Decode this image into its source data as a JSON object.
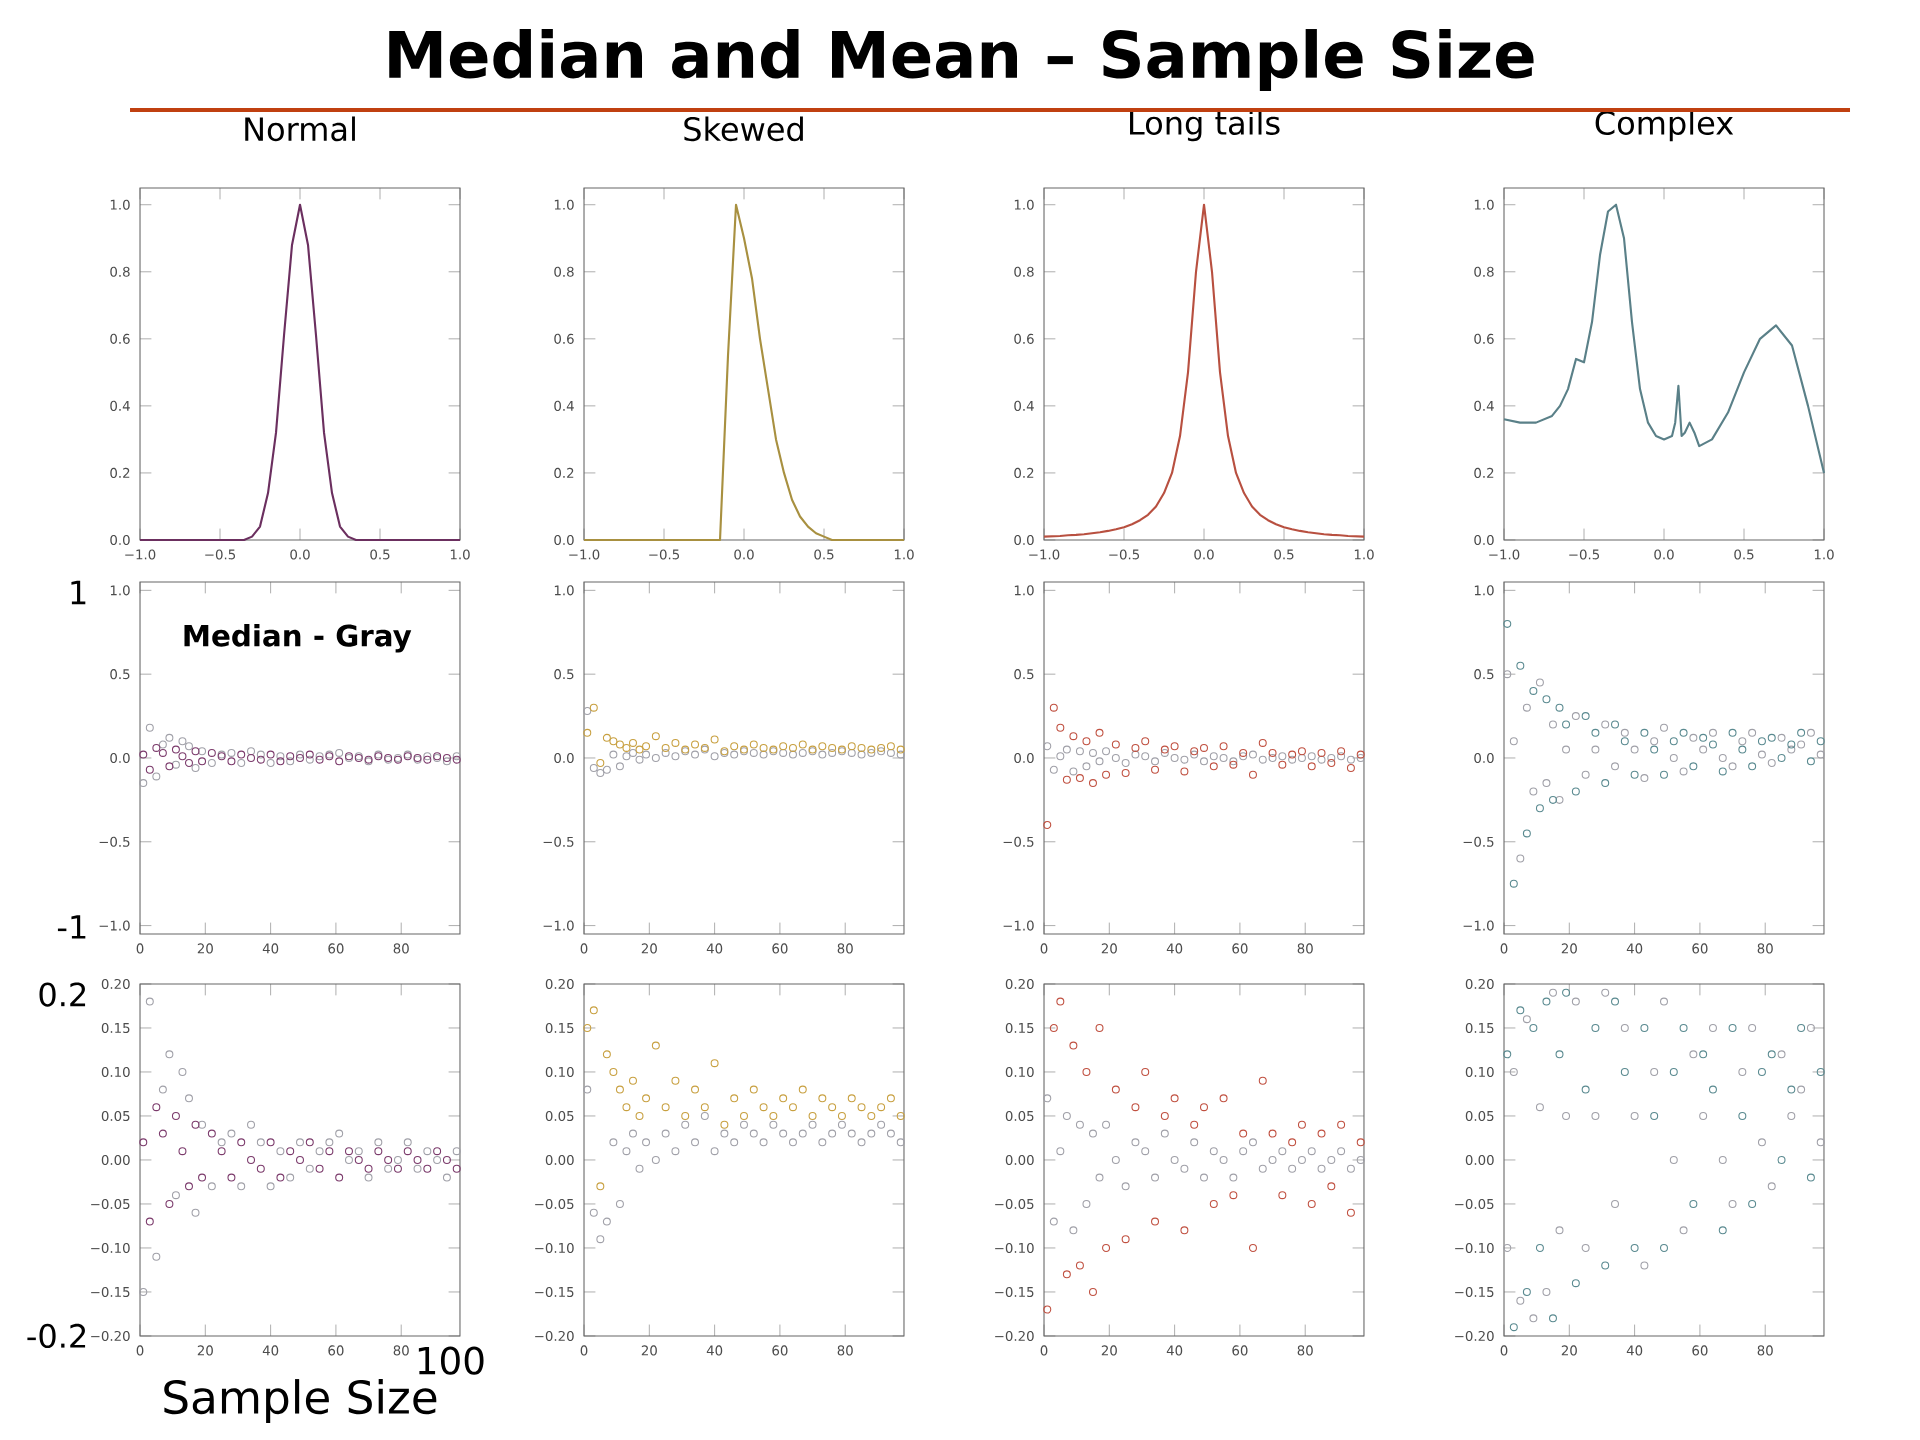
{
  "chart_data": [
    {
      "type": "line",
      "title": "Normal",
      "annotations": [
        "Median and Mean – Sample Size"
      ],
      "xlim": [
        -1,
        1
      ],
      "ylim": [
        0,
        1.05
      ],
      "xticks": [
        {
          "value": -1,
          "label": "−1.0"
        },
        {
          "value": -0.5,
          "label": "−0.5"
        },
        {
          "value": 0,
          "label": "0.0"
        },
        {
          "value": 0.5,
          "label": "0.5"
        },
        {
          "value": 1,
          "label": "1.0"
        }
      ],
      "yticks": [
        {
          "value": 0,
          "label": "0.0"
        },
        {
          "value": 0.2,
          "label": "0.2"
        },
        {
          "value": 0.4,
          "label": "0.4"
        },
        {
          "value": 0.6,
          "label": "0.6"
        },
        {
          "value": 0.8,
          "label": "0.8"
        },
        {
          "value": 1,
          "label": "1.0"
        }
      ],
      "x": [
        -1,
        -0.95,
        -0.9,
        -0.85,
        -0.8,
        -0.75,
        -0.7,
        -0.65,
        -0.6,
        -0.55,
        -0.5,
        -0.45,
        -0.4,
        -0.35,
        -0.3,
        -0.25,
        -0.2,
        -0.15,
        -0.1,
        -0.05,
        0,
        0.05,
        0.1,
        0.15,
        0.2,
        0.25,
        0.3,
        0.35,
        0.4,
        0.45,
        0.5,
        0.55,
        0.6,
        0.65,
        0.7,
        0.75,
        0.8,
        0.85,
        0.9,
        0.95,
        1
      ],
      "series": [
        {
          "color": "#6b2f5f",
          "values": [
            0,
            0,
            0,
            0,
            0,
            0,
            0,
            0,
            0,
            0,
            0,
            0,
            0,
            0,
            0.01,
            0.04,
            0.14,
            0.32,
            0.61,
            0.88,
            1,
            0.88,
            0.61,
            0.32,
            0.14,
            0.04,
            0.01,
            0,
            0,
            0,
            0,
            0,
            0,
            0,
            0,
            0,
            0,
            0,
            0,
            0,
            0
          ]
        }
      ]
    },
    {
      "type": "line",
      "title": "Skewed",
      "xlim": [
        -1,
        1
      ],
      "ylim": [
        0,
        1.05
      ],
      "xticks": [
        {
          "value": -1,
          "label": "−1.0"
        },
        {
          "value": -0.5,
          "label": "−0.5"
        },
        {
          "value": 0,
          "label": "0.0"
        },
        {
          "value": 0.5,
          "label": "0.5"
        },
        {
          "value": 1,
          "label": "1.0"
        }
      ],
      "yticks": [
        {
          "value": 0,
          "label": "0.0"
        },
        {
          "value": 0.2,
          "label": "0.2"
        },
        {
          "value": 0.4,
          "label": "0.4"
        },
        {
          "value": 0.6,
          "label": "0.6"
        },
        {
          "value": 0.8,
          "label": "0.8"
        },
        {
          "value": 1,
          "label": "1.0"
        }
      ],
      "x": [
        -1,
        -0.95,
        -0.9,
        -0.85,
        -0.8,
        -0.75,
        -0.7,
        -0.65,
        -0.6,
        -0.55,
        -0.5,
        -0.45,
        -0.4,
        -0.35,
        -0.3,
        -0.25,
        -0.2,
        -0.15,
        -0.1,
        -0.05,
        0,
        0.05,
        0.1,
        0.15,
        0.2,
        0.25,
        0.3,
        0.35,
        0.4,
        0.45,
        0.5,
        0.55,
        0.6,
        0.65,
        0.7,
        0.75,
        0.8,
        0.85,
        0.9,
        0.95,
        1
      ],
      "series": [
        {
          "color": "#a89040",
          "values": [
            0,
            0,
            0,
            0,
            0,
            0,
            0,
            0,
            0,
            0,
            0,
            0,
            0,
            0,
            0,
            0,
            0,
            0,
            0.55,
            1,
            0.9,
            0.78,
            0.6,
            0.45,
            0.3,
            0.2,
            0.12,
            0.07,
            0.04,
            0.02,
            0.01,
            0,
            0,
            0,
            0,
            0,
            0,
            0,
            0,
            0,
            0
          ]
        }
      ]
    },
    {
      "type": "line",
      "title": "Long tails",
      "xlim": [
        -1,
        1
      ],
      "ylim": [
        0,
        1.05
      ],
      "xticks": [
        {
          "value": -1,
          "label": "−1.0"
        },
        {
          "value": -0.5,
          "label": "−0.5"
        },
        {
          "value": 0,
          "label": "0.0"
        },
        {
          "value": 0.5,
          "label": "0.5"
        },
        {
          "value": 1,
          "label": "1.0"
        }
      ],
      "yticks": [
        {
          "value": 0,
          "label": "0.0"
        },
        {
          "value": 0.2,
          "label": "0.2"
        },
        {
          "value": 0.4,
          "label": "0.4"
        },
        {
          "value": 0.6,
          "label": "0.6"
        },
        {
          "value": 0.8,
          "label": "0.8"
        },
        {
          "value": 1,
          "label": "1.0"
        }
      ],
      "x": [
        -1,
        -0.95,
        -0.9,
        -0.85,
        -0.8,
        -0.75,
        -0.7,
        -0.65,
        -0.6,
        -0.55,
        -0.5,
        -0.45,
        -0.4,
        -0.35,
        -0.3,
        -0.25,
        -0.2,
        -0.15,
        -0.1,
        -0.05,
        0,
        0.05,
        0.1,
        0.15,
        0.2,
        0.25,
        0.3,
        0.35,
        0.4,
        0.45,
        0.5,
        0.55,
        0.6,
        0.65,
        0.7,
        0.75,
        0.8,
        0.85,
        0.9,
        0.95,
        1
      ],
      "series": [
        {
          "color": "#b85040",
          "values": [
            0.01,
            0.011,
            0.012,
            0.014,
            0.015,
            0.017,
            0.02,
            0.023,
            0.027,
            0.032,
            0.038,
            0.047,
            0.059,
            0.075,
            0.1,
            0.14,
            0.2,
            0.31,
            0.5,
            0.8,
            1,
            0.8,
            0.5,
            0.31,
            0.2,
            0.14,
            0.1,
            0.075,
            0.059,
            0.047,
            0.038,
            0.032,
            0.027,
            0.023,
            0.02,
            0.017,
            0.015,
            0.014,
            0.012,
            0.011,
            0.01
          ]
        }
      ]
    },
    {
      "type": "line",
      "title": "Complex",
      "xlim": [
        -1,
        1
      ],
      "ylim": [
        0,
        1.05
      ],
      "xticks": [
        {
          "value": -1,
          "label": "−1.0"
        },
        {
          "value": -0.5,
          "label": "−0.5"
        },
        {
          "value": 0,
          "label": "0.0"
        },
        {
          "value": 0.5,
          "label": "0.5"
        },
        {
          "value": 1,
          "label": "1.0"
        }
      ],
      "yticks": [
        {
          "value": 0,
          "label": "0.0"
        },
        {
          "value": 0.2,
          "label": "0.2"
        },
        {
          "value": 0.4,
          "label": "0.4"
        },
        {
          "value": 0.6,
          "label": "0.6"
        },
        {
          "value": 0.8,
          "label": "0.8"
        },
        {
          "value": 1,
          "label": "1.0"
        }
      ],
      "x": [
        -1,
        -0.9,
        -0.8,
        -0.7,
        -0.65,
        -0.6,
        -0.55,
        -0.5,
        -0.45,
        -0.4,
        -0.35,
        -0.3,
        -0.25,
        -0.2,
        -0.15,
        -0.1,
        -0.05,
        0,
        0.05,
        0.07,
        0.09,
        0.11,
        0.13,
        0.16,
        0.19,
        0.22,
        0.3,
        0.4,
        0.5,
        0.6,
        0.7,
        0.8,
        0.9,
        1
      ],
      "series": [
        {
          "color": "#5a8088",
          "values": [
            0.36,
            0.35,
            0.35,
            0.37,
            0.4,
            0.45,
            0.54,
            0.53,
            0.65,
            0.85,
            0.98,
            1.0,
            0.9,
            0.65,
            0.45,
            0.35,
            0.31,
            0.3,
            0.31,
            0.35,
            0.46,
            0.31,
            0.32,
            0.35,
            0.32,
            0.28,
            0.3,
            0.38,
            0.5,
            0.6,
            0.64,
            0.58,
            0.4,
            0.2
          ]
        }
      ]
    },
    {
      "type": "scatter",
      "marker": "circle",
      "annotations": [
        "1",
        "-1",
        "Median - Gray"
      ],
      "xlim": [
        0,
        98
      ],
      "ylim": [
        -1.05,
        1.05
      ],
      "xticks": [
        0,
        20,
        40,
        60,
        80
      ],
      "yticks": [
        {
          "value": -1,
          "label": "−1.0"
        },
        {
          "value": -0.5,
          "label": "−0.5"
        },
        {
          "value": 0,
          "label": "0.0"
        },
        {
          "value": 0.5,
          "label": "0.5"
        },
        {
          "value": 1,
          "label": "1.0"
        }
      ],
      "x": [
        1,
        3,
        5,
        7,
        9,
        11,
        13,
        15,
        17,
        19,
        22,
        25,
        28,
        31,
        34,
        37,
        40,
        43,
        46,
        49,
        52,
        55,
        58,
        61,
        64,
        67,
        70,
        73,
        76,
        79,
        82,
        85,
        88,
        91,
        94,
        97
      ],
      "series": [
        {
          "color": "#a0a0a8",
          "values": [
            -0.15,
            0.18,
            -0.11,
            0.08,
            0.12,
            -0.04,
            0.1,
            0.07,
            -0.06,
            0.04,
            -0.03,
            0.02,
            0.03,
            -0.03,
            0.04,
            0.02,
            -0.03,
            0.01,
            -0.02,
            0.02,
            -0.01,
            0.01,
            0.02,
            0.03,
            0,
            0.01,
            -0.02,
            0.02,
            -0.01,
            0,
            0.02,
            -0.01,
            0.01,
            0,
            -0.02,
            0.01
          ]
        },
        {
          "color": "#7b3a6b",
          "values": [
            0.02,
            -0.07,
            0.06,
            0.03,
            -0.05,
            0.05,
            0.01,
            -0.03,
            0.04,
            -0.02,
            0.03,
            0.01,
            -0.02,
            0.02,
            0,
            -0.01,
            0.02,
            -0.02,
            0.01,
            0,
            0.02,
            -0.01,
            0.01,
            -0.02,
            0.01,
            0,
            -0.01,
            0.01,
            0,
            -0.01,
            0.01,
            0,
            -0.01,
            0.01,
            0,
            -0.01
          ]
        }
      ]
    },
    {
      "type": "scatter",
      "marker": "circle",
      "xlim": [
        0,
        98
      ],
      "ylim": [
        -1.05,
        1.05
      ],
      "xticks": [
        0,
        20,
        40,
        60,
        80
      ],
      "yticks": [
        {
          "value": -1,
          "label": "−1.0"
        },
        {
          "value": -0.5,
          "label": "−0.5"
        },
        {
          "value": 0,
          "label": "0.0"
        },
        {
          "value": 0.5,
          "label": "0.5"
        },
        {
          "value": 1,
          "label": "1.0"
        }
      ],
      "x": [
        1,
        3,
        5,
        7,
        9,
        11,
        13,
        15,
        17,
        19,
        22,
        25,
        28,
        31,
        34,
        37,
        40,
        43,
        46,
        49,
        52,
        55,
        58,
        61,
        64,
        67,
        70,
        73,
        76,
        79,
        82,
        85,
        88,
        91,
        94,
        97
      ],
      "series": [
        {
          "color": "#a0a0a8",
          "values": [
            0.28,
            -0.06,
            -0.09,
            -0.07,
            0.02,
            -0.05,
            0.01,
            0.03,
            -0.01,
            0.02,
            0,
            0.03,
            0.01,
            0.04,
            0.02,
            0.05,
            0.01,
            0.03,
            0.02,
            0.04,
            0.03,
            0.02,
            0.04,
            0.03,
            0.02,
            0.03,
            0.04,
            0.02,
            0.03,
            0.04,
            0.03,
            0.02,
            0.03,
            0.04,
            0.03,
            0.02
          ]
        },
        {
          "color": "#c8a040",
          "values": [
            0.15,
            0.3,
            -0.03,
            0.12,
            0.1,
            0.08,
            0.06,
            0.09,
            0.05,
            0.07,
            0.13,
            0.06,
            0.09,
            0.05,
            0.08,
            0.06,
            0.11,
            0.04,
            0.07,
            0.05,
            0.08,
            0.06,
            0.05,
            0.07,
            0.06,
            0.08,
            0.05,
            0.07,
            0.06,
            0.05,
            0.07,
            0.06,
            0.05,
            0.06,
            0.07,
            0.05
          ]
        }
      ]
    },
    {
      "type": "scatter",
      "marker": "circle",
      "xlim": [
        0,
        98
      ],
      "ylim": [
        -1.05,
        1.05
      ],
      "xticks": [
        0,
        20,
        40,
        60,
        80
      ],
      "yticks": [
        {
          "value": -1,
          "label": "−1.0"
        },
        {
          "value": -0.5,
          "label": "−0.5"
        },
        {
          "value": 0,
          "label": "0.0"
        },
        {
          "value": 0.5,
          "label": "0.5"
        },
        {
          "value": 1,
          "label": "1.0"
        }
      ],
      "x": [
        1,
        3,
        5,
        7,
        9,
        11,
        13,
        15,
        17,
        19,
        22,
        25,
        28,
        31,
        34,
        37,
        40,
        43,
        46,
        49,
        52,
        55,
        58,
        61,
        64,
        67,
        70,
        73,
        76,
        79,
        82,
        85,
        88,
        91,
        94,
        97
      ],
      "series": [
        {
          "color": "#a0a0a8",
          "values": [
            0.07,
            -0.07,
            0.01,
            0.05,
            -0.08,
            0.04,
            -0.05,
            0.03,
            -0.02,
            0.04,
            0,
            -0.03,
            0.02,
            0.01,
            -0.02,
            0.03,
            0,
            -0.01,
            0.02,
            -0.02,
            0.01,
            0,
            -0.02,
            0.01,
            0.02,
            -0.01,
            0,
            0.01,
            -0.01,
            0,
            0.01,
            -0.01,
            0,
            0.01,
            -0.01,
            0
          ]
        },
        {
          "color": "#c05040",
          "values": [
            -0.4,
            0.3,
            0.18,
            -0.13,
            0.13,
            -0.12,
            0.1,
            -0.15,
            0.15,
            -0.1,
            0.08,
            -0.09,
            0.06,
            0.1,
            -0.07,
            0.05,
            0.07,
            -0.08,
            0.04,
            0.06,
            -0.05,
            0.07,
            -0.04,
            0.03,
            -0.1,
            0.09,
            0.03,
            -0.04,
            0.02,
            0.04,
            -0.05,
            0.03,
            -0.03,
            0.04,
            -0.06,
            0.02
          ]
        }
      ]
    },
    {
      "type": "scatter",
      "marker": "circle",
      "xlim": [
        0,
        98
      ],
      "ylim": [
        -1.05,
        1.05
      ],
      "xticks": [
        0,
        20,
        40,
        60,
        80
      ],
      "yticks": [
        {
          "value": -1,
          "label": "−1.0"
        },
        {
          "value": -0.5,
          "label": "−0.5"
        },
        {
          "value": 0,
          "label": "0.0"
        },
        {
          "value": 0.5,
          "label": "0.5"
        },
        {
          "value": 1,
          "label": "1.0"
        }
      ],
      "x": [
        1,
        3,
        5,
        7,
        9,
        11,
        13,
        15,
        17,
        19,
        22,
        25,
        28,
        31,
        34,
        37,
        40,
        43,
        46,
        49,
        52,
        55,
        58,
        61,
        64,
        67,
        70,
        73,
        76,
        79,
        82,
        85,
        88,
        91,
        94,
        97
      ],
      "series": [
        {
          "color": "#a0a0a8",
          "values": [
            0.5,
            0.1,
            -0.6,
            0.3,
            -0.2,
            0.45,
            -0.15,
            0.2,
            -0.25,
            0.05,
            0.25,
            -0.1,
            0.05,
            0.2,
            -0.05,
            0.15,
            0.05,
            -0.12,
            0.1,
            0.18,
            0,
            -0.08,
            0.12,
            0.05,
            0.15,
            0,
            -0.05,
            0.1,
            0.15,
            0.02,
            -0.03,
            0.12,
            0.05,
            0.08,
            0.15,
            0.02
          ]
        },
        {
          "color": "#5a8a90",
          "values": [
            0.8,
            -0.75,
            0.55,
            -0.45,
            0.4,
            -0.3,
            0.35,
            -0.25,
            0.3,
            0.2,
            -0.2,
            0.25,
            0.15,
            -0.15,
            0.2,
            0.1,
            -0.1,
            0.15,
            0.05,
            -0.1,
            0.1,
            0.15,
            -0.05,
            0.12,
            0.08,
            -0.08,
            0.15,
            0.05,
            -0.05,
            0.1,
            0.12,
            0,
            0.08,
            0.15,
            -0.02,
            0.1
          ]
        }
      ]
    },
    {
      "type": "scatter",
      "marker": "circle",
      "annotations": [
        "0.2",
        "-0.2",
        "100"
      ],
      "xlabel": "Sample Size",
      "xlim": [
        0,
        98
      ],
      "ylim": [
        -0.2,
        0.2
      ],
      "xticks": [
        0,
        20,
        40,
        60,
        80
      ],
      "yticks": [
        {
          "value": -0.2,
          "label": "−0.20"
        },
        {
          "value": -0.15,
          "label": "−0.15"
        },
        {
          "value": -0.1,
          "label": "−0.10"
        },
        {
          "value": -0.05,
          "label": "−0.05"
        },
        {
          "value": 0,
          "label": "0.00"
        },
        {
          "value": 0.05,
          "label": "0.05"
        },
        {
          "value": 0.1,
          "label": "0.10"
        },
        {
          "value": 0.15,
          "label": "0.15"
        },
        {
          "value": 0.2,
          "label": "0.20"
        }
      ],
      "x": [
        1,
        3,
        5,
        7,
        9,
        11,
        13,
        15,
        17,
        19,
        22,
        25,
        28,
        31,
        34,
        37,
        40,
        43,
        46,
        49,
        52,
        55,
        58,
        61,
        64,
        67,
        70,
        73,
        76,
        79,
        82,
        85,
        88,
        91,
        94,
        97
      ],
      "series": [
        {
          "color": "#a0a0a8",
          "values": [
            -0.15,
            0.18,
            -0.11,
            0.08,
            0.12,
            -0.04,
            0.1,
            0.07,
            -0.06,
            0.04,
            -0.03,
            0.02,
            0.03,
            -0.03,
            0.04,
            0.02,
            -0.03,
            0.01,
            -0.02,
            0.02,
            -0.01,
            0.01,
            0.02,
            0.03,
            0,
            0.01,
            -0.02,
            0.02,
            -0.01,
            0,
            0.02,
            -0.01,
            0.01,
            0,
            -0.02,
            0.01
          ]
        },
        {
          "color": "#7b3a6b",
          "values": [
            0.02,
            -0.07,
            0.06,
            0.03,
            -0.05,
            0.05,
            0.01,
            -0.03,
            0.04,
            -0.02,
            0.03,
            0.01,
            -0.02,
            0.02,
            0,
            -0.01,
            0.02,
            -0.02,
            0.01,
            0,
            0.02,
            -0.01,
            0.01,
            -0.02,
            0.01,
            0,
            -0.01,
            0.01,
            0,
            -0.01,
            0.01,
            0,
            -0.01,
            0.01,
            0,
            -0.01
          ]
        }
      ]
    },
    {
      "type": "scatter",
      "marker": "circle",
      "xlim": [
        0,
        98
      ],
      "ylim": [
        -0.2,
        0.2
      ],
      "xticks": [
        0,
        20,
        40,
        60,
        80
      ],
      "yticks": [
        {
          "value": -0.2,
          "label": "−0.20"
        },
        {
          "value": -0.15,
          "label": "−0.15"
        },
        {
          "value": -0.1,
          "label": "−0.10"
        },
        {
          "value": -0.05,
          "label": "−0.05"
        },
        {
          "value": 0,
          "label": "0.00"
        },
        {
          "value": 0.05,
          "label": "0.05"
        },
        {
          "value": 0.1,
          "label": "0.10"
        },
        {
          "value": 0.15,
          "label": "0.15"
        },
        {
          "value": 0.2,
          "label": "0.20"
        }
      ],
      "x": [
        1,
        3,
        5,
        7,
        9,
        11,
        13,
        15,
        17,
        19,
        22,
        25,
        28,
        31,
        34,
        37,
        40,
        43,
        46,
        49,
        52,
        55,
        58,
        61,
        64,
        67,
        70,
        73,
        76,
        79,
        82,
        85,
        88,
        91,
        94,
        97
      ],
      "series": [
        {
          "color": "#a0a0a8",
          "values": [
            0.08,
            -0.06,
            -0.09,
            -0.07,
            0.02,
            -0.05,
            0.01,
            0.03,
            -0.01,
            0.02,
            0,
            0.03,
            0.01,
            0.04,
            0.02,
            0.05,
            0.01,
            0.03,
            0.02,
            0.04,
            0.03,
            0.02,
            0.04,
            0.03,
            0.02,
            0.03,
            0.04,
            0.02,
            0.03,
            0.04,
            0.03,
            0.02,
            0.03,
            0.04,
            0.03,
            0.02
          ]
        },
        {
          "color": "#c8a040",
          "values": [
            0.15,
            0.17,
            -0.03,
            0.12,
            0.1,
            0.08,
            0.06,
            0.09,
            0.05,
            0.07,
            0.13,
            0.06,
            0.09,
            0.05,
            0.08,
            0.06,
            0.11,
            0.04,
            0.07,
            0.05,
            0.08,
            0.06,
            0.05,
            0.07,
            0.06,
            0.08,
            0.05,
            0.07,
            0.06,
            0.05,
            0.07,
            0.06,
            0.05,
            0.06,
            0.07,
            0.05
          ]
        }
      ]
    },
    {
      "type": "scatter",
      "marker": "circle",
      "xlim": [
        0,
        98
      ],
      "ylim": [
        -0.2,
        0.2
      ],
      "xticks": [
        0,
        20,
        40,
        60,
        80
      ],
      "yticks": [
        {
          "value": -0.2,
          "label": "−0.20"
        },
        {
          "value": -0.15,
          "label": "−0.15"
        },
        {
          "value": -0.1,
          "label": "−0.10"
        },
        {
          "value": -0.05,
          "label": "−0.05"
        },
        {
          "value": 0,
          "label": "0.00"
        },
        {
          "value": 0.05,
          "label": "0.05"
        },
        {
          "value": 0.1,
          "label": "0.10"
        },
        {
          "value": 0.15,
          "label": "0.15"
        },
        {
          "value": 0.2,
          "label": "0.20"
        }
      ],
      "x": [
        1,
        3,
        5,
        7,
        9,
        11,
        13,
        15,
        17,
        19,
        22,
        25,
        28,
        31,
        34,
        37,
        40,
        43,
        46,
        49,
        52,
        55,
        58,
        61,
        64,
        67,
        70,
        73,
        76,
        79,
        82,
        85,
        88,
        91,
        94,
        97
      ],
      "series": [
        {
          "color": "#a0a0a8",
          "values": [
            0.07,
            -0.07,
            0.01,
            0.05,
            -0.08,
            0.04,
            -0.05,
            0.03,
            -0.02,
            0.04,
            0,
            -0.03,
            0.02,
            0.01,
            -0.02,
            0.03,
            0,
            -0.01,
            0.02,
            -0.02,
            0.01,
            0,
            -0.02,
            0.01,
            0.02,
            -0.01,
            0,
            0.01,
            -0.01,
            0,
            0.01,
            -0.01,
            0,
            0.01,
            -0.01,
            0
          ]
        },
        {
          "color": "#c05040",
          "values": [
            -0.17,
            0.15,
            0.18,
            -0.13,
            0.13,
            -0.12,
            0.1,
            -0.15,
            0.15,
            -0.1,
            0.08,
            -0.09,
            0.06,
            0.1,
            -0.07,
            0.05,
            0.07,
            -0.08,
            0.04,
            0.06,
            -0.05,
            0.07,
            -0.04,
            0.03,
            -0.1,
            0.09,
            0.03,
            -0.04,
            0.02,
            0.04,
            -0.05,
            0.03,
            -0.03,
            0.04,
            -0.06,
            0.02
          ]
        }
      ]
    },
    {
      "type": "scatter",
      "marker": "circle",
      "xlim": [
        0,
        98
      ],
      "ylim": [
        -0.2,
        0.2
      ],
      "xticks": [
        0,
        20,
        40,
        60,
        80
      ],
      "yticks": [
        {
          "value": -0.2,
          "label": "−0.20"
        },
        {
          "value": -0.15,
          "label": "−0.15"
        },
        {
          "value": -0.1,
          "label": "−0.10"
        },
        {
          "value": -0.05,
          "label": "−0.05"
        },
        {
          "value": 0,
          "label": "0.00"
        },
        {
          "value": 0.05,
          "label": "0.05"
        },
        {
          "value": 0.1,
          "label": "0.10"
        },
        {
          "value": 0.15,
          "label": "0.15"
        },
        {
          "value": 0.2,
          "label": "0.20"
        }
      ],
      "x": [
        1,
        3,
        5,
        7,
        9,
        11,
        13,
        15,
        17,
        19,
        22,
        25,
        28,
        31,
        34,
        37,
        40,
        43,
        46,
        49,
        52,
        55,
        58,
        61,
        64,
        67,
        70,
        73,
        76,
        79,
        82,
        85,
        88,
        91,
        94,
        97
      ],
      "series": [
        {
          "color": "#a0a0a8",
          "values": [
            -0.1,
            0.1,
            -0.16,
            0.16,
            -0.18,
            0.06,
            -0.15,
            0.19,
            -0.08,
            0.05,
            0.18,
            -0.1,
            0.05,
            0.19,
            -0.05,
            0.15,
            0.05,
            -0.12,
            0.1,
            0.18,
            0,
            -0.08,
            0.12,
            0.05,
            0.15,
            0,
            -0.05,
            0.1,
            0.15,
            0.02,
            -0.03,
            0.12,
            0.05,
            0.08,
            0.15,
            0.02
          ]
        },
        {
          "color": "#5a8a90",
          "values": [
            0.12,
            -0.19,
            0.17,
            -0.15,
            0.15,
            -0.1,
            0.18,
            -0.18,
            0.12,
            0.19,
            -0.14,
            0.08,
            0.15,
            -0.12,
            0.18,
            0.1,
            -0.1,
            0.15,
            0.05,
            -0.1,
            0.1,
            0.15,
            -0.05,
            0.12,
            0.08,
            -0.08,
            0.15,
            0.05,
            -0.05,
            0.1,
            0.12,
            0,
            0.08,
            0.15,
            -0.02,
            0.1
          ]
        }
      ]
    }
  ]
}
